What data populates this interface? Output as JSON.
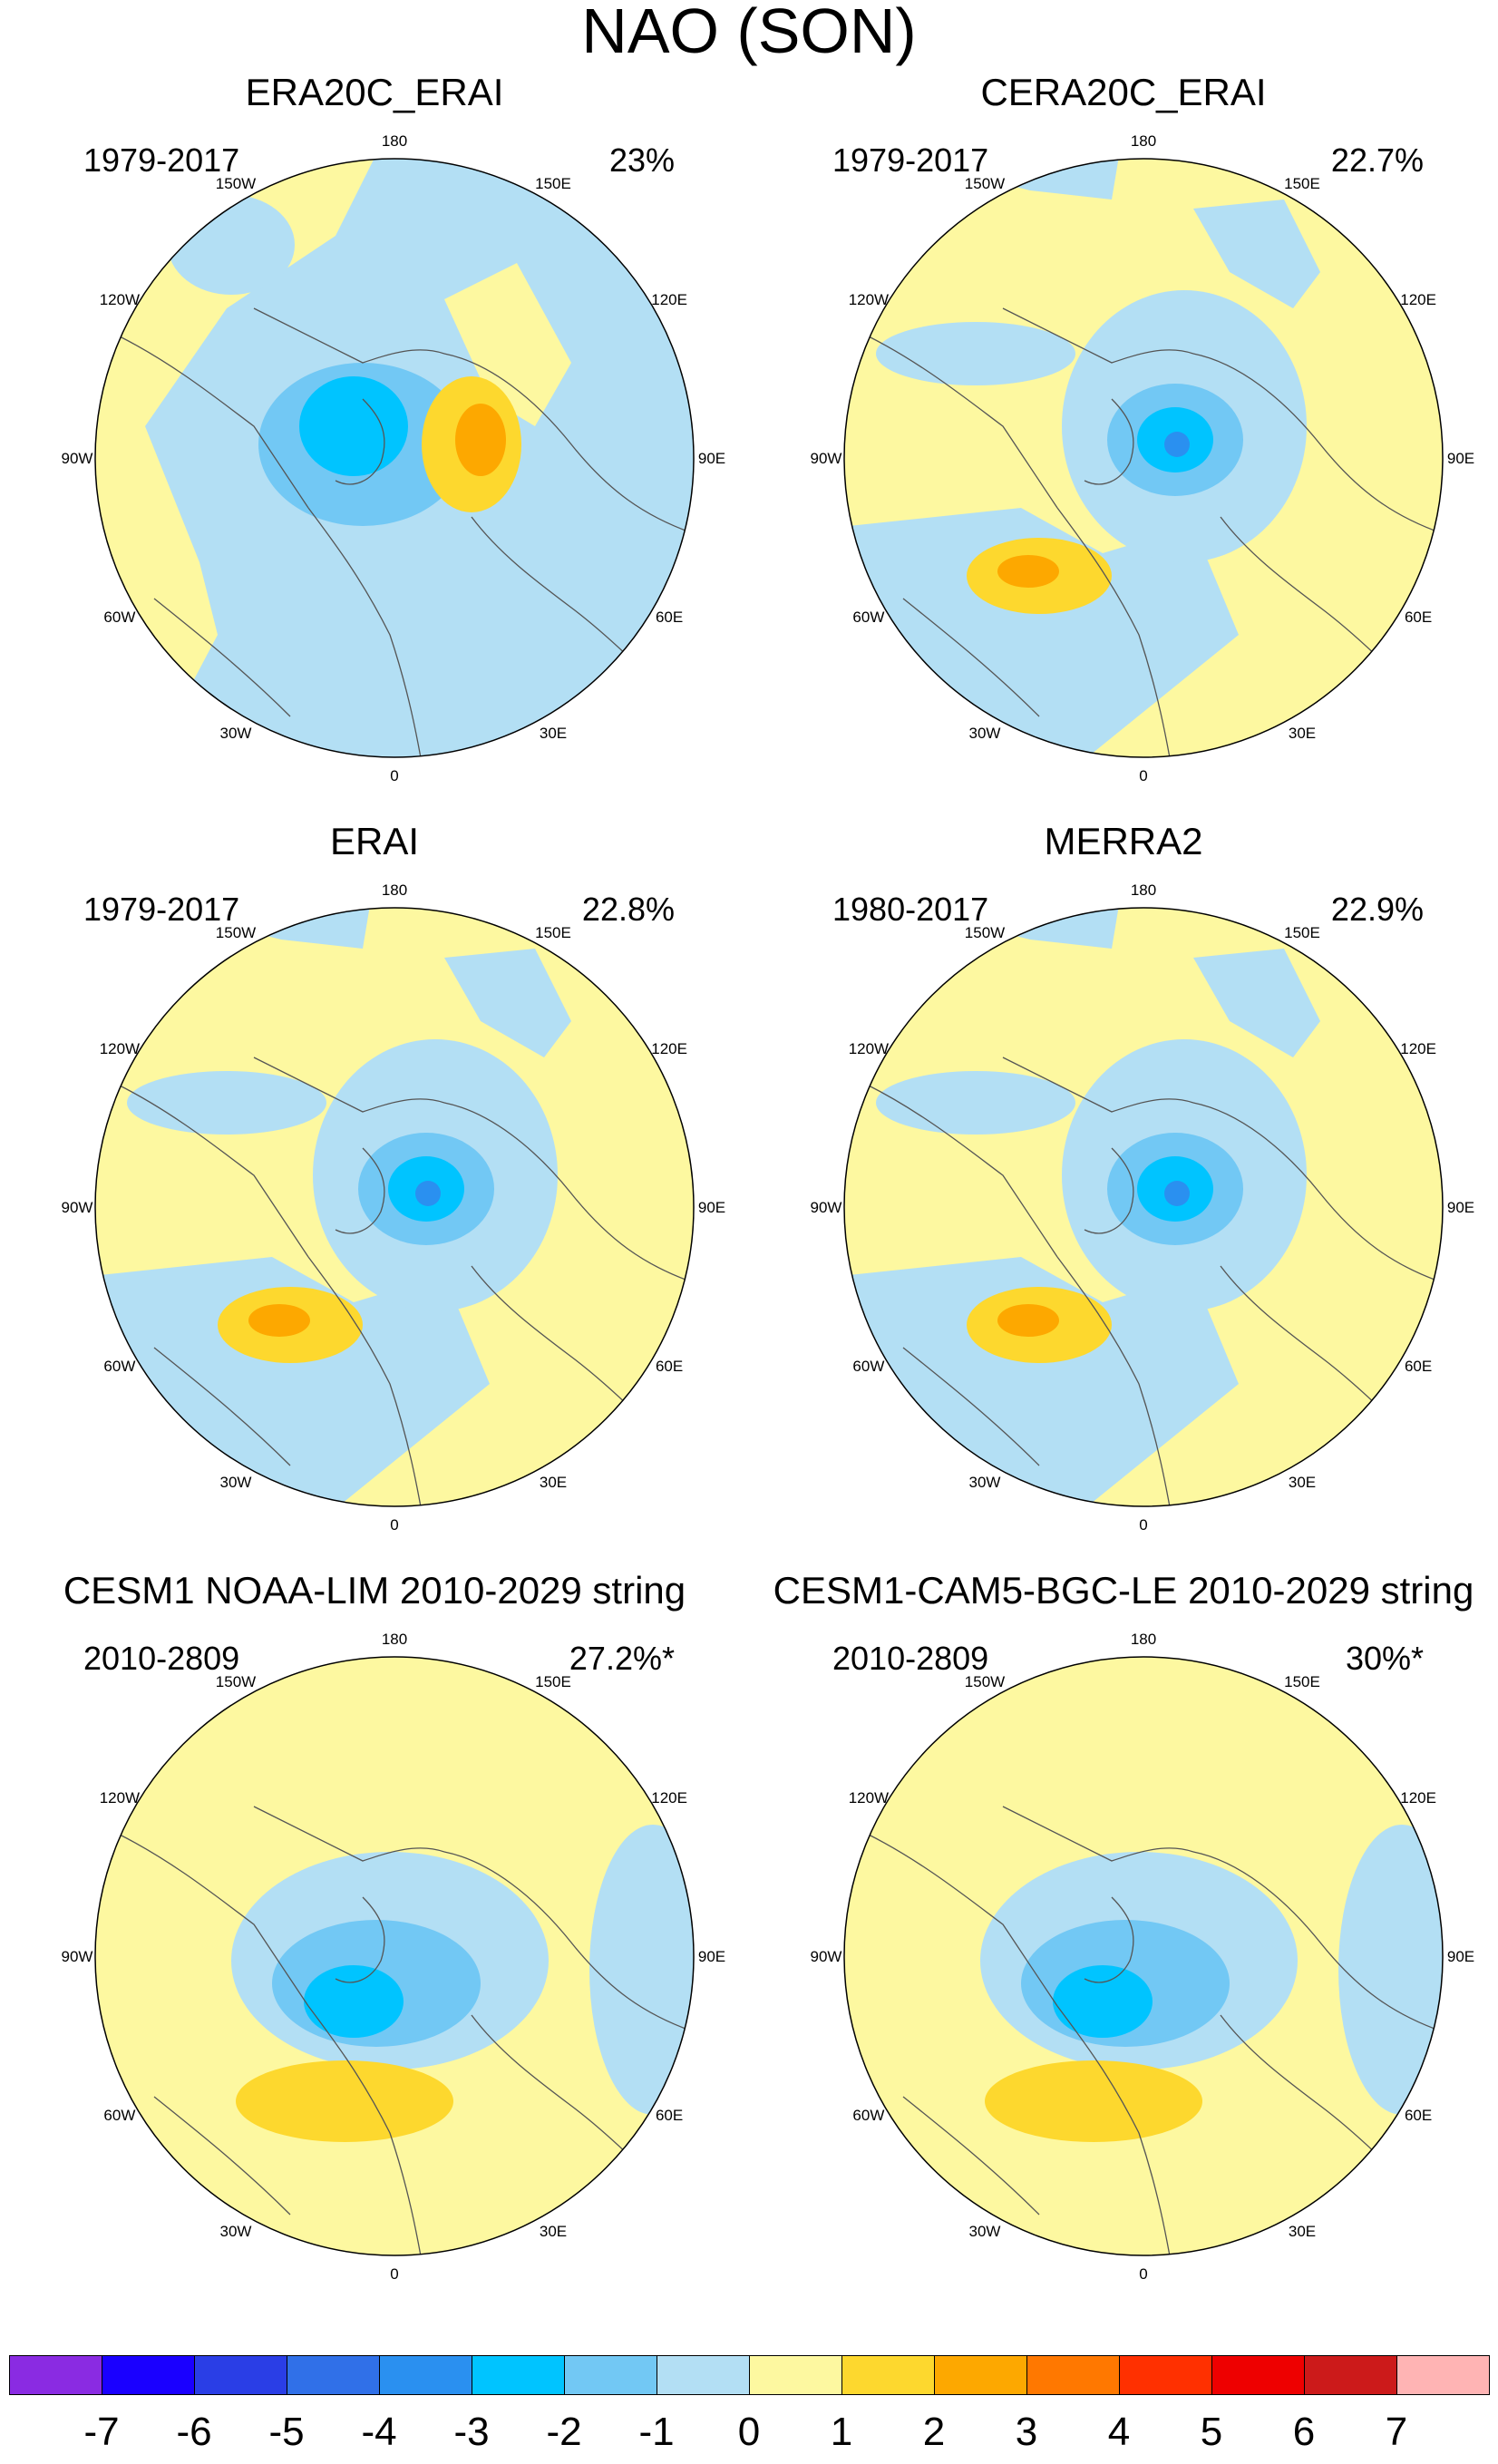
{
  "title": "NAO (SON)",
  "longitude_labels": [
    "180",
    "150E",
    "120E",
    "90E",
    "60E",
    "30E",
    "0",
    "30W",
    "60W",
    "90W",
    "120W",
    "150W"
  ],
  "panels": [
    {
      "title": "ERA20C_ERAI",
      "period": "1979-2017",
      "variance": "23%",
      "style": "era20c"
    },
    {
      "title": "CERA20C_ERAI",
      "period": "1979-2017",
      "variance": "22.7%",
      "style": "reanalysis"
    },
    {
      "title": "ERAI",
      "period": "1979-2017",
      "variance": "22.8%",
      "style": "reanalysis"
    },
    {
      "title": "MERRA2",
      "period": "1980-2017",
      "variance": "22.9%",
      "style": "reanalysis"
    },
    {
      "title": "CESM1 NOAA-LIM 2010-2029 string",
      "period": "2010-2809",
      "variance": "27.2%*",
      "style": "model"
    },
    {
      "title": "CESM1-CAM5-BGC-LE 2010-2029 string",
      "period": "2010-2809",
      "variance": "30%*",
      "style": "model"
    }
  ],
  "colorbar": {
    "labels": [
      "-7",
      "-6",
      "-5",
      "-4",
      "-3",
      "-2",
      "-1",
      "0",
      "1",
      "2",
      "3",
      "4",
      "5",
      "6",
      "7"
    ],
    "colors": [
      "#8a2be2",
      "#1a00ff",
      "#2a3ee6",
      "#3070e8",
      "#2a90f0",
      "#00c4ff",
      "#72c8f4",
      "#b3dff4",
      "#fdf8a0",
      "#fdd82e",
      "#fda800",
      "#ff7800",
      "#ff3000",
      "#ee0000",
      "#cc1a1a",
      "#ffb4b4"
    ]
  },
  "palette": {
    "neg1": "#b3dff4",
    "neg2": "#72c8f4",
    "neg3": "#00c4ff",
    "neg4": "#2a90f0",
    "pos1": "#fdf8a0",
    "pos2": "#fdd82e",
    "pos3": "#fda800",
    "coast": "#555555"
  }
}
